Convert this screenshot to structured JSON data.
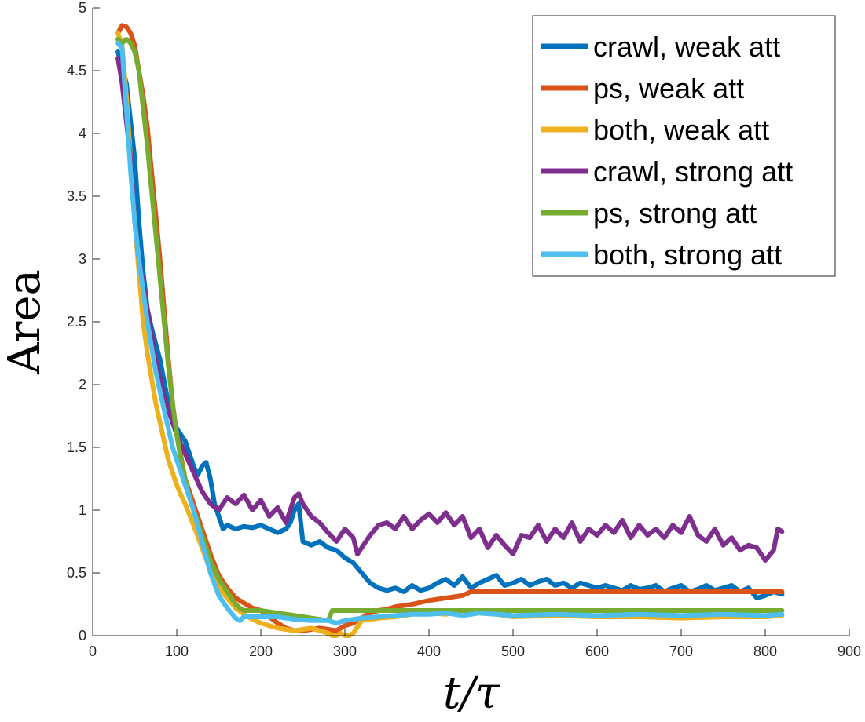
{
  "chart_data": {
    "type": "line",
    "title": "",
    "xlabel": "t/τ",
    "ylabel": "Area",
    "xlim": [
      0,
      900
    ],
    "ylim": [
      0,
      5
    ],
    "xticks": [
      0,
      100,
      200,
      300,
      400,
      500,
      600,
      700,
      800,
      900
    ],
    "yticks": [
      0,
      0.5,
      1,
      1.5,
      2,
      2.5,
      3,
      3.5,
      4,
      4.5,
      5
    ],
    "xtick_labels": [
      "0",
      "100",
      "200",
      "300",
      "400",
      "500",
      "600",
      "700",
      "800",
      "900"
    ],
    "ytick_labels": [
      "0",
      "0.5",
      "1",
      "1.5",
      "2",
      "2.5",
      "3",
      "3.5",
      "4",
      "4.5",
      "5"
    ],
    "grid": false,
    "legend_position": "top-right",
    "series": [
      {
        "name": "crawl, weak att",
        "color": "#0072BD",
        "x": [
          30,
          40,
          50,
          55,
          60,
          65,
          70,
          80,
          90,
          100,
          110,
          115,
          120,
          125,
          130,
          135,
          140,
          145,
          150,
          155,
          160,
          170,
          180,
          190,
          200,
          210,
          220,
          230,
          235,
          240,
          245,
          250,
          260,
          270,
          280,
          290,
          300,
          310,
          320,
          330,
          340,
          350,
          360,
          370,
          380,
          390,
          400,
          410,
          420,
          430,
          440,
          450,
          460,
          470,
          480,
          490,
          500,
          510,
          520,
          530,
          540,
          550,
          560,
          570,
          580,
          590,
          600,
          610,
          620,
          630,
          640,
          650,
          660,
          670,
          680,
          690,
          700,
          710,
          720,
          730,
          740,
          750,
          760,
          770,
          780,
          790,
          800,
          810,
          820
        ],
        "y": [
          4.65,
          4.4,
          3.8,
          3.3,
          2.9,
          2.6,
          2.45,
          2.2,
          1.85,
          1.65,
          1.55,
          1.45,
          1.35,
          1.28,
          1.35,
          1.38,
          1.25,
          1.05,
          0.95,
          0.85,
          0.88,
          0.85,
          0.87,
          0.86,
          0.88,
          0.85,
          0.82,
          0.85,
          0.9,
          1.0,
          1.05,
          0.75,
          0.72,
          0.75,
          0.7,
          0.68,
          0.62,
          0.58,
          0.5,
          0.42,
          0.38,
          0.36,
          0.38,
          0.35,
          0.4,
          0.36,
          0.38,
          0.42,
          0.45,
          0.4,
          0.47,
          0.38,
          0.42,
          0.45,
          0.48,
          0.4,
          0.42,
          0.45,
          0.4,
          0.43,
          0.45,
          0.4,
          0.42,
          0.38,
          0.42,
          0.4,
          0.38,
          0.4,
          0.38,
          0.36,
          0.4,
          0.37,
          0.38,
          0.4,
          0.35,
          0.38,
          0.4,
          0.35,
          0.37,
          0.4,
          0.36,
          0.38,
          0.4,
          0.35,
          0.38,
          0.3,
          0.32,
          0.35,
          0.33
        ]
      },
      {
        "name": "ps, weak att",
        "color": "#D95319",
        "x": [
          30,
          35,
          40,
          45,
          50,
          55,
          60,
          65,
          70,
          75,
          80,
          85,
          90,
          95,
          100,
          110,
          120,
          130,
          140,
          150,
          160,
          170,
          180,
          190,
          200,
          210,
          220,
          230,
          240,
          250,
          260,
          270,
          280,
          290,
          300,
          310,
          320,
          330,
          340,
          350,
          360,
          380,
          400,
          420,
          440,
          450,
          460,
          500,
          550,
          600,
          650,
          700,
          750,
          800,
          820
        ],
        "y": [
          4.8,
          4.86,
          4.85,
          4.8,
          4.7,
          4.5,
          4.3,
          4.05,
          3.7,
          3.35,
          3.0,
          2.6,
          2.2,
          1.85,
          1.6,
          1.25,
          1.05,
          0.85,
          0.65,
          0.48,
          0.38,
          0.3,
          0.26,
          0.22,
          0.2,
          0.15,
          0.1,
          0.06,
          0.04,
          0.04,
          0.05,
          0.06,
          0.05,
          0.04,
          0.08,
          0.1,
          0.14,
          0.18,
          0.2,
          0.21,
          0.23,
          0.25,
          0.28,
          0.3,
          0.32,
          0.35,
          0.35,
          0.35,
          0.35,
          0.35,
          0.35,
          0.35,
          0.35,
          0.35,
          0.35
        ]
      },
      {
        "name": "both, weak att",
        "color": "#EDB120",
        "x": [
          30,
          35,
          40,
          45,
          50,
          55,
          60,
          65,
          70,
          75,
          80,
          85,
          90,
          95,
          100,
          105,
          110,
          120,
          130,
          140,
          150,
          160,
          170,
          180,
          190,
          200,
          210,
          220,
          230,
          240,
          250,
          260,
          270,
          280,
          285,
          290,
          295,
          300,
          305,
          310,
          320,
          340,
          360,
          380,
          400,
          420,
          440,
          460,
          480,
          500,
          550,
          600,
          650,
          700,
          750,
          800,
          820
        ],
        "y": [
          4.8,
          4.7,
          4.3,
          3.8,
          3.3,
          2.9,
          2.5,
          2.25,
          2.05,
          1.85,
          1.7,
          1.55,
          1.4,
          1.3,
          1.2,
          1.12,
          1.05,
          0.88,
          0.7,
          0.52,
          0.38,
          0.3,
          0.22,
          0.17,
          0.13,
          0.1,
          0.08,
          0.06,
          0.05,
          0.04,
          0.05,
          0.06,
          0.04,
          0.02,
          0.0,
          0.0,
          0.02,
          0.0,
          0.0,
          0.02,
          0.12,
          0.14,
          0.15,
          0.17,
          0.18,
          0.17,
          0.2,
          0.18,
          0.17,
          0.15,
          0.16,
          0.15,
          0.15,
          0.14,
          0.15,
          0.15,
          0.16
        ]
      },
      {
        "name": "crawl, strong att",
        "color": "#7E2F8E",
        "x": [
          30,
          35,
          40,
          45,
          50,
          55,
          60,
          65,
          70,
          75,
          80,
          85,
          90,
          95,
          100,
          110,
          120,
          130,
          140,
          150,
          160,
          170,
          180,
          190,
          200,
          210,
          220,
          230,
          240,
          245,
          250,
          260,
          270,
          280,
          290,
          300,
          310,
          315,
          320,
          330,
          340,
          350,
          360,
          370,
          380,
          390,
          400,
          410,
          420,
          430,
          440,
          450,
          460,
          470,
          480,
          490,
          500,
          510,
          520,
          530,
          540,
          550,
          560,
          570,
          580,
          590,
          600,
          610,
          620,
          630,
          640,
          650,
          660,
          670,
          680,
          690,
          700,
          710,
          720,
          730,
          740,
          750,
          760,
          770,
          780,
          790,
          800,
          810,
          815,
          820
        ],
        "y": [
          4.6,
          4.4,
          4.1,
          3.8,
          3.3,
          3.0,
          2.8,
          2.6,
          2.4,
          2.2,
          2.05,
          1.9,
          1.8,
          1.7,
          1.6,
          1.45,
          1.3,
          1.15,
          1.05,
          1.0,
          1.1,
          1.05,
          1.12,
          1.0,
          1.08,
          0.95,
          1.02,
          0.9,
          1.1,
          1.13,
          1.05,
          0.95,
          0.9,
          0.82,
          0.75,
          0.85,
          0.78,
          0.65,
          0.7,
          0.8,
          0.88,
          0.9,
          0.85,
          0.95,
          0.85,
          0.92,
          0.97,
          0.9,
          0.98,
          0.88,
          0.95,
          0.78,
          0.85,
          0.7,
          0.8,
          0.72,
          0.65,
          0.8,
          0.78,
          0.88,
          0.75,
          0.85,
          0.78,
          0.9,
          0.75,
          0.85,
          0.8,
          0.88,
          0.82,
          0.92,
          0.78,
          0.88,
          0.8,
          0.85,
          0.78,
          0.88,
          0.82,
          0.95,
          0.8,
          0.75,
          0.85,
          0.72,
          0.78,
          0.68,
          0.72,
          0.7,
          0.6,
          0.68,
          0.85,
          0.83
        ]
      },
      {
        "name": "ps, strong att",
        "color": "#77AC30",
        "x": [
          30,
          35,
          40,
          45,
          50,
          55,
          60,
          65,
          70,
          75,
          80,
          85,
          90,
          95,
          100,
          105,
          110,
          115,
          120,
          130,
          140,
          150,
          160,
          170,
          175,
          180,
          190,
          200,
          220,
          240,
          260,
          280,
          282,
          285,
          290,
          300,
          350,
          400,
          450,
          500,
          550,
          600,
          650,
          700,
          750,
          800,
          820
        ],
        "y": [
          4.75,
          4.72,
          4.75,
          4.72,
          4.65,
          4.5,
          4.2,
          3.9,
          3.55,
          3.2,
          2.85,
          2.5,
          2.15,
          1.85,
          1.6,
          1.4,
          1.25,
          1.1,
          1.0,
          0.8,
          0.6,
          0.45,
          0.35,
          0.25,
          0.22,
          0.2,
          0.2,
          0.2,
          0.18,
          0.16,
          0.14,
          0.12,
          0.15,
          0.2,
          0.2,
          0.2,
          0.2,
          0.2,
          0.2,
          0.2,
          0.2,
          0.2,
          0.2,
          0.2,
          0.2,
          0.2,
          0.2
        ]
      },
      {
        "name": "both, strong att",
        "color": "#4DBEEE",
        "x": [
          30,
          35,
          40,
          45,
          50,
          55,
          60,
          65,
          70,
          75,
          80,
          85,
          90,
          95,
          100,
          105,
          110,
          115,
          120,
          130,
          140,
          150,
          160,
          170,
          175,
          180,
          200,
          220,
          240,
          260,
          280,
          290,
          300,
          320,
          340,
          360,
          380,
          400,
          420,
          440,
          460,
          480,
          500,
          550,
          600,
          650,
          700,
          750,
          800,
          820
        ],
        "y": [
          4.72,
          4.68,
          4.2,
          3.7,
          3.3,
          3.0,
          2.75,
          2.5,
          2.3,
          2.1,
          1.95,
          1.8,
          1.65,
          1.5,
          1.4,
          1.3,
          1.2,
          1.1,
          1.0,
          0.75,
          0.5,
          0.32,
          0.22,
          0.14,
          0.12,
          0.15,
          0.15,
          0.15,
          0.13,
          0.12,
          0.12,
          0.1,
          0.12,
          0.14,
          0.15,
          0.16,
          0.17,
          0.17,
          0.18,
          0.16,
          0.18,
          0.17,
          0.16,
          0.17,
          0.16,
          0.17,
          0.16,
          0.17,
          0.16,
          0.17
        ]
      }
    ]
  }
}
